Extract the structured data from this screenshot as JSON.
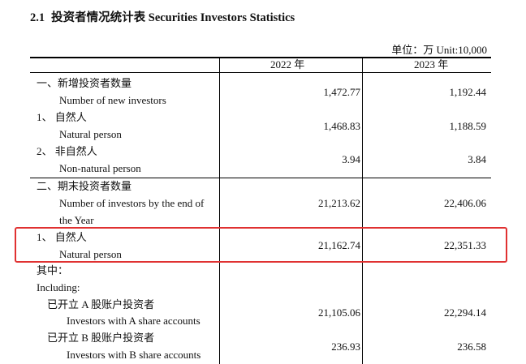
{
  "title": {
    "number": "2.1",
    "cn": "投资者情况统计表",
    "en": "Securities Investors Statistics"
  },
  "unit": "单位：万 Unit:10,000",
  "columns": [
    "2022 年",
    "2023 年"
  ],
  "rows": [
    {
      "cn": "一、新增投资者数量",
      "en": [
        "Number of new investors"
      ],
      "v2022": "1,472.77",
      "v2023": "1,192.44"
    },
    {
      "cn": "1、 自然人",
      "en": [
        "Natural person"
      ],
      "v2022": "1,468.83",
      "v2023": "1,188.59"
    },
    {
      "cn": "2、 非自然人",
      "en": [
        "Non-natural person"
      ],
      "v2022": "3.94",
      "v2023": "3.84"
    },
    {
      "cn": "二、期末投资者数量",
      "en": [
        "Number of investors by the end of",
        "the Year"
      ],
      "v2022": "21,213.62",
      "v2023": "22,406.06"
    },
    {
      "cn": "1、 自然人",
      "en": [
        "Natural person"
      ],
      "v2022": "21,162.74",
      "v2023": "22,351.33"
    },
    {
      "cn": "其中：",
      "en": [
        "Including:"
      ],
      "v2022": "",
      "v2023": ""
    },
    {
      "cn": "已开立 A 股账户投资者",
      "en": [
        "Investors with A share accounts"
      ],
      "v2022": "21,105.06",
      "v2023": "22,294.14"
    },
    {
      "cn": "已开立 B 股账户投资者",
      "en": [
        "Investors with B share accounts"
      ],
      "v2022": "236.93",
      "v2023": "236.58"
    }
  ]
}
